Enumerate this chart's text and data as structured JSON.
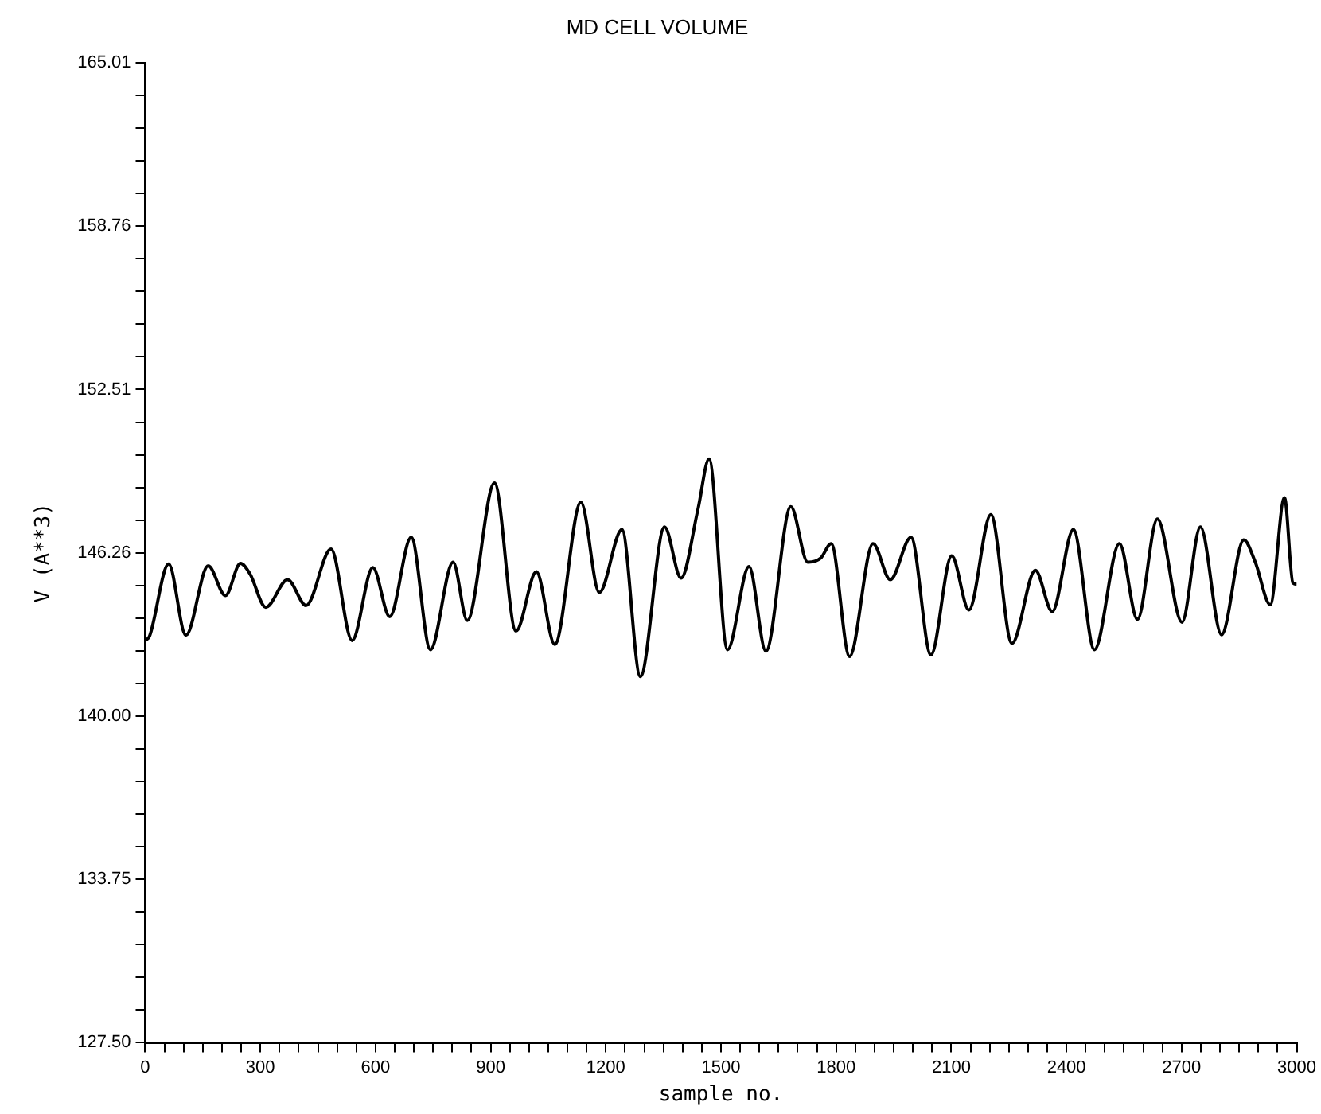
{
  "chart_data": {
    "type": "line",
    "title": "MD CELL VOLUME",
    "xlabel": "sample no.",
    "ylabel": "V (A**3)",
    "series": [
      {
        "color": "#000000",
        "x": [
          0,
          11,
          61,
          106,
          164,
          209,
          248,
          273,
          314,
          371,
          419,
          484,
          539,
          593,
          637,
          693,
          743,
          802,
          839,
          910,
          966,
          1019,
          1067,
          1135,
          1183,
          1242,
          1290,
          1353,
          1396,
          1440,
          1469,
          1517,
          1573,
          1617,
          1682,
          1726,
          1760,
          1787,
          1835,
          1896,
          1941,
          1995,
          2047,
          2101,
          2146,
          2203,
          2258,
          2319,
          2363,
          2418,
          2473,
          2538,
          2585,
          2637,
          2701,
          2749,
          2804,
          2862,
          2892,
          2931,
          2968,
          2990,
          3000
        ],
        "values": [
          142.9,
          143.06,
          145.83,
          143.1,
          145.76,
          144.62,
          145.85,
          145.45,
          144.17,
          145.23,
          144.24,
          146.4,
          142.9,
          145.69,
          143.81,
          146.85,
          142.55,
          145.9,
          143.67,
          148.93,
          143.26,
          145.53,
          142.75,
          148.19,
          144.74,
          147.15,
          141.52,
          147.25,
          145.29,
          147.92,
          149.85,
          142.55,
          145.73,
          142.49,
          148.02,
          145.9,
          146.06,
          146.61,
          142.29,
          146.61,
          145.23,
          146.85,
          142.35,
          146.14,
          144.07,
          147.72,
          142.79,
          145.59,
          144.01,
          147.15,
          142.55,
          146.61,
          143.71,
          147.55,
          143.6,
          147.25,
          143.12,
          146.75,
          145.9,
          144.27,
          148.37,
          145.1,
          145.05
        ]
      }
    ],
    "xlim": [
      0,
      3000
    ],
    "xticks": [
      0,
      {
        "value": 50,
        "label": null
      },
      {
        "value": 100,
        "label": null
      },
      {
        "value": 150,
        "label": null
      },
      {
        "value": 200,
        "label": null
      },
      {
        "value": 250,
        "label": null
      },
      300,
      {
        "value": 350,
        "label": null
      },
      {
        "value": 400,
        "label": null
      },
      {
        "value": 450,
        "label": null
      },
      {
        "value": 500,
        "label": null
      },
      {
        "value": 550,
        "label": null
      },
      600,
      {
        "value": 650,
        "label": null
      },
      {
        "value": 700,
        "label": null
      },
      {
        "value": 750,
        "label": null
      },
      {
        "value": 800,
        "label": null
      },
      {
        "value": 850,
        "label": null
      },
      900,
      {
        "value": 950,
        "label": null
      },
      {
        "value": 1000,
        "label": null
      },
      {
        "value": 1050,
        "label": null
      },
      {
        "value": 1100,
        "label": null
      },
      {
        "value": 1150,
        "label": null
      },
      1200,
      {
        "value": 1250,
        "label": null
      },
      {
        "value": 1300,
        "label": null
      },
      {
        "value": 1350,
        "label": null
      },
      {
        "value": 1400,
        "label": null
      },
      {
        "value": 1450,
        "label": null
      },
      1500,
      {
        "value": 1550,
        "label": null
      },
      {
        "value": 1600,
        "label": null
      },
      {
        "value": 1650,
        "label": null
      },
      {
        "value": 1700,
        "label": null
      },
      {
        "value": 1750,
        "label": null
      },
      1800,
      {
        "value": 1850,
        "label": null
      },
      {
        "value": 1900,
        "label": null
      },
      {
        "value": 1950,
        "label": null
      },
      {
        "value": 2000,
        "label": null
      },
      {
        "value": 2050,
        "label": null
      },
      2100,
      {
        "value": 2150,
        "label": null
      },
      {
        "value": 2200,
        "label": null
      },
      {
        "value": 2250,
        "label": null
      },
      {
        "value": 2300,
        "label": null
      },
      {
        "value": 2350,
        "label": null
      },
      2400,
      {
        "value": 2450,
        "label": null
      },
      {
        "value": 2500,
        "label": null
      },
      {
        "value": 2550,
        "label": null
      },
      {
        "value": 2600,
        "label": null
      },
      {
        "value": 2650,
        "label": null
      },
      2700,
      {
        "value": 2750,
        "label": null
      },
      {
        "value": 2800,
        "label": null
      },
      {
        "value": 2850,
        "label": null
      },
      {
        "value": 2900,
        "label": null
      },
      {
        "value": 2950,
        "label": null
      },
      3000
    ],
    "ylim": [
      127.5,
      165.01
    ],
    "yticks": [
      {
        "value": 127.5,
        "label": "127.50"
      },
      {
        "value": 128.75,
        "label": null
      },
      {
        "value": 130,
        "label": null
      },
      {
        "value": 131.25,
        "label": null
      },
      {
        "value": 132.5,
        "label": null
      },
      133.75,
      {
        "value": 135,
        "label": null
      },
      {
        "value": 136.25,
        "label": null
      },
      {
        "value": 137.5,
        "label": null
      },
      {
        "value": 138.75,
        "label": null
      },
      {
        "value": 140,
        "label": "140.00"
      },
      {
        "value": 141.25,
        "label": null
      },
      {
        "value": 142.5,
        "label": null
      },
      {
        "value": 143.75,
        "label": null
      },
      {
        "value": 145,
        "label": null
      },
      146.26,
      {
        "value": 147.51,
        "label": null
      },
      {
        "value": 148.76,
        "label": null
      },
      {
        "value": 150.01,
        "label": null
      },
      {
        "value": 151.26,
        "label": null
      },
      152.51,
      {
        "value": 153.76,
        "label": null
      },
      {
        "value": 155.01,
        "label": null
      },
      {
        "value": 156.26,
        "label": null
      },
      {
        "value": 157.51,
        "label": null
      },
      158.76,
      {
        "value": 160.01,
        "label": null
      },
      {
        "value": 161.26,
        "label": null
      },
      {
        "value": 162.51,
        "label": null
      },
      {
        "value": 163.76,
        "label": null
      },
      165.01
    ],
    "marker": "none",
    "line_style": "solid"
  }
}
